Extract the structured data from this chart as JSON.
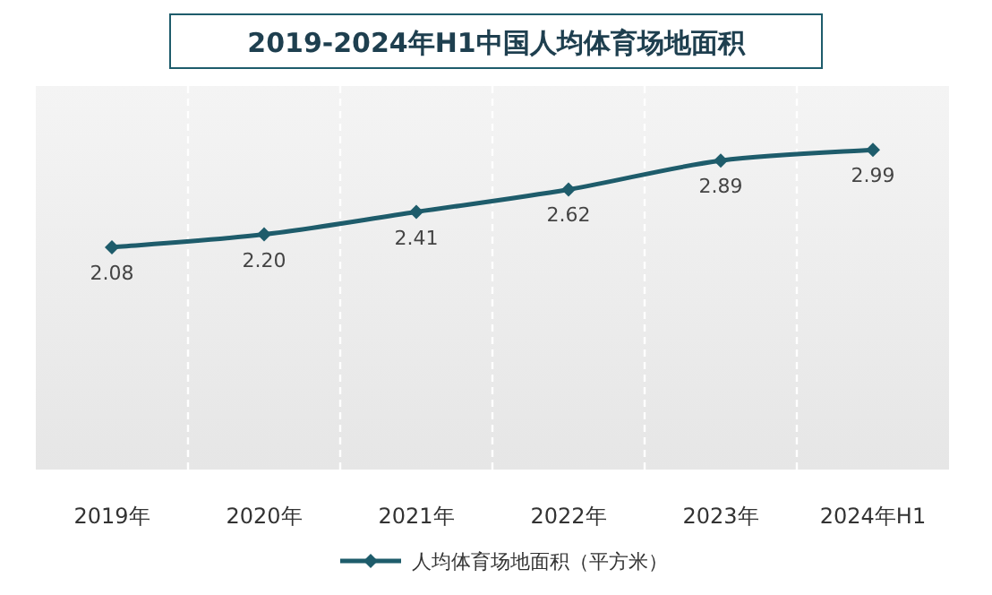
{
  "chart_data": {
    "type": "line",
    "title": "2019-2024年H1中国人均体育场地面积",
    "categories": [
      "2019年",
      "2020年",
      "2021年",
      "2022年",
      "2023年",
      "2024年H1"
    ],
    "series": [
      {
        "name": "人均体育场地面积（平方米）",
        "color": "#1e5c6b",
        "values": [
          2.08,
          2.2,
          2.41,
          2.62,
          2.89,
          2.99
        ],
        "value_labels": [
          "2.08",
          "2.20",
          "2.41",
          "2.62",
          "2.89",
          "2.99"
        ]
      }
    ],
    "grid": "x",
    "legend": "bottom",
    "marker": "diamond",
    "line_style": "solid"
  }
}
